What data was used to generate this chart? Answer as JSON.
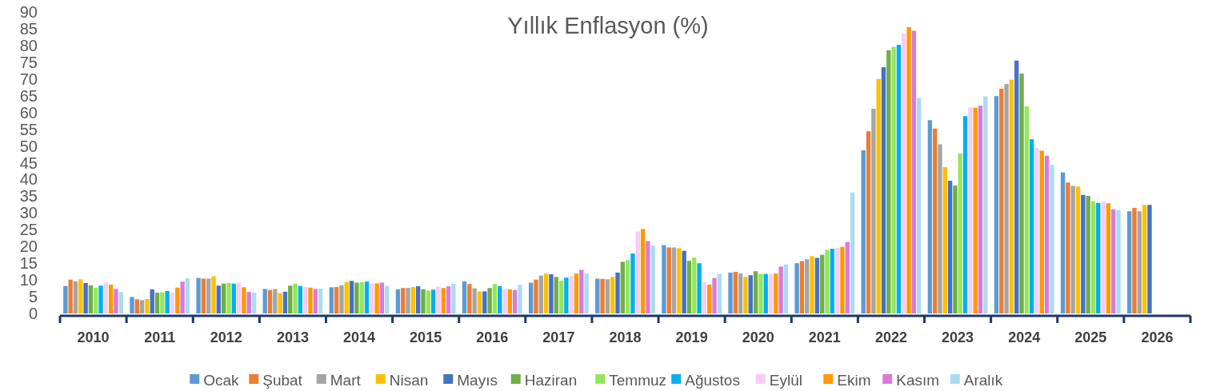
{
  "chart_data": {
    "type": "bar",
    "title": "Yıllık Enflasyon (%)",
    "categories": [
      "2010",
      "2011",
      "2012",
      "2013",
      "2014",
      "2015",
      "2016",
      "2017",
      "2018",
      "2019",
      "2020",
      "2021",
      "2022",
      "2023",
      "2024",
      "2025",
      "2026"
    ],
    "ylim": [
      0,
      90
    ],
    "yticks": [
      0,
      5,
      10,
      15,
      20,
      25,
      30,
      35,
      40,
      45,
      50,
      55,
      60,
      65,
      70,
      75,
      80,
      85,
      90
    ],
    "grid": false,
    "legend": "bottom",
    "series": [
      {
        "name": "Ocak",
        "color": "#5b9bd5",
        "values": [
          8.2,
          4.9,
          10.6,
          7.3,
          7.8,
          7.2,
          9.6,
          9.2,
          10.4,
          20.4,
          12.2,
          15.0,
          48.7,
          57.7,
          64.9,
          42.1,
          30.5
        ]
      },
      {
        "name": "Şubat",
        "color": "#ed7d31",
        "values": [
          10.1,
          4.2,
          10.4,
          7.0,
          7.9,
          7.6,
          8.8,
          10.1,
          10.3,
          19.7,
          12.4,
          15.6,
          54.4,
          55.2,
          67.1,
          39.1,
          31.5
        ]
      },
      {
        "name": "Mart",
        "color": "#a5a5a5",
        "values": [
          9.6,
          4.0,
          10.4,
          7.3,
          8.4,
          7.6,
          7.5,
          11.3,
          10.2,
          19.7,
          11.9,
          16.2,
          61.1,
          50.5,
          68.5,
          38.1,
          30.5
        ]
      },
      {
        "name": "Nisan",
        "color": "#ffc000",
        "values": [
          10.2,
          4.3,
          11.1,
          6.1,
          9.4,
          7.9,
          6.6,
          11.9,
          10.9,
          19.5,
          10.9,
          17.1,
          70.0,
          43.7,
          69.8,
          37.9,
          32.4
        ]
      },
      {
        "name": "Mayıs",
        "color": "#4472c4",
        "values": [
          9.1,
          7.2,
          8.3,
          6.5,
          9.7,
          8.1,
          6.6,
          11.7,
          12.2,
          18.7,
          11.4,
          16.6,
          73.5,
          39.6,
          75.5,
          35.4,
          32.4
        ]
      },
      {
        "name": "Haziran",
        "color": "#70ad47",
        "values": [
          8.4,
          6.2,
          8.9,
          8.3,
          9.2,
          7.2,
          7.6,
          10.9,
          15.4,
          15.7,
          12.6,
          17.5,
          78.6,
          38.2,
          71.6,
          35.1,
          null
        ]
      },
      {
        "name": "Temmuz",
        "color": "#92e85a",
        "values": [
          7.6,
          6.3,
          9.1,
          8.9,
          9.3,
          6.8,
          8.8,
          9.8,
          15.9,
          16.7,
          11.8,
          19.0,
          79.6,
          47.8,
          61.8,
          33.5,
          null
        ]
      },
      {
        "name": "Ağustos",
        "color": "#00b0f0",
        "values": [
          8.3,
          6.7,
          8.9,
          8.2,
          9.5,
          7.1,
          8.1,
          10.7,
          17.9,
          15.0,
          11.8,
          19.3,
          80.2,
          58.9,
          52.0,
          33.0,
          null
        ]
      },
      {
        "name": "Eylül",
        "color": "#f6cdf4",
        "values": [
          9.2,
          6.2,
          9.2,
          7.9,
          8.9,
          8.0,
          7.3,
          11.2,
          24.5,
          9.3,
          11.8,
          19.6,
          83.5,
          61.5,
          49.4,
          33.3,
          null
        ]
      },
      {
        "name": "Ekim",
        "color": "#ff9900",
        "values": [
          8.6,
          7.7,
          7.8,
          7.7,
          9.0,
          7.6,
          7.2,
          11.9,
          25.2,
          8.6,
          11.9,
          19.9,
          85.5,
          61.4,
          48.6,
          32.9,
          null
        ]
      },
      {
        "name": "Kasım",
        "color": "#d97ad9",
        "values": [
          7.3,
          9.5,
          6.4,
          7.3,
          9.2,
          8.1,
          7.0,
          13.0,
          21.6,
          10.6,
          14.0,
          21.3,
          84.4,
          62.0,
          47.1,
          31.1,
          null
        ]
      },
      {
        "name": "Aralık",
        "color": "#aadcf0",
        "values": [
          6.4,
          10.5,
          6.2,
          7.4,
          8.2,
          8.8,
          8.5,
          11.9,
          20.3,
          11.8,
          14.6,
          36.1,
          64.3,
          64.8,
          44.4,
          30.9,
          null
        ]
      }
    ]
  }
}
